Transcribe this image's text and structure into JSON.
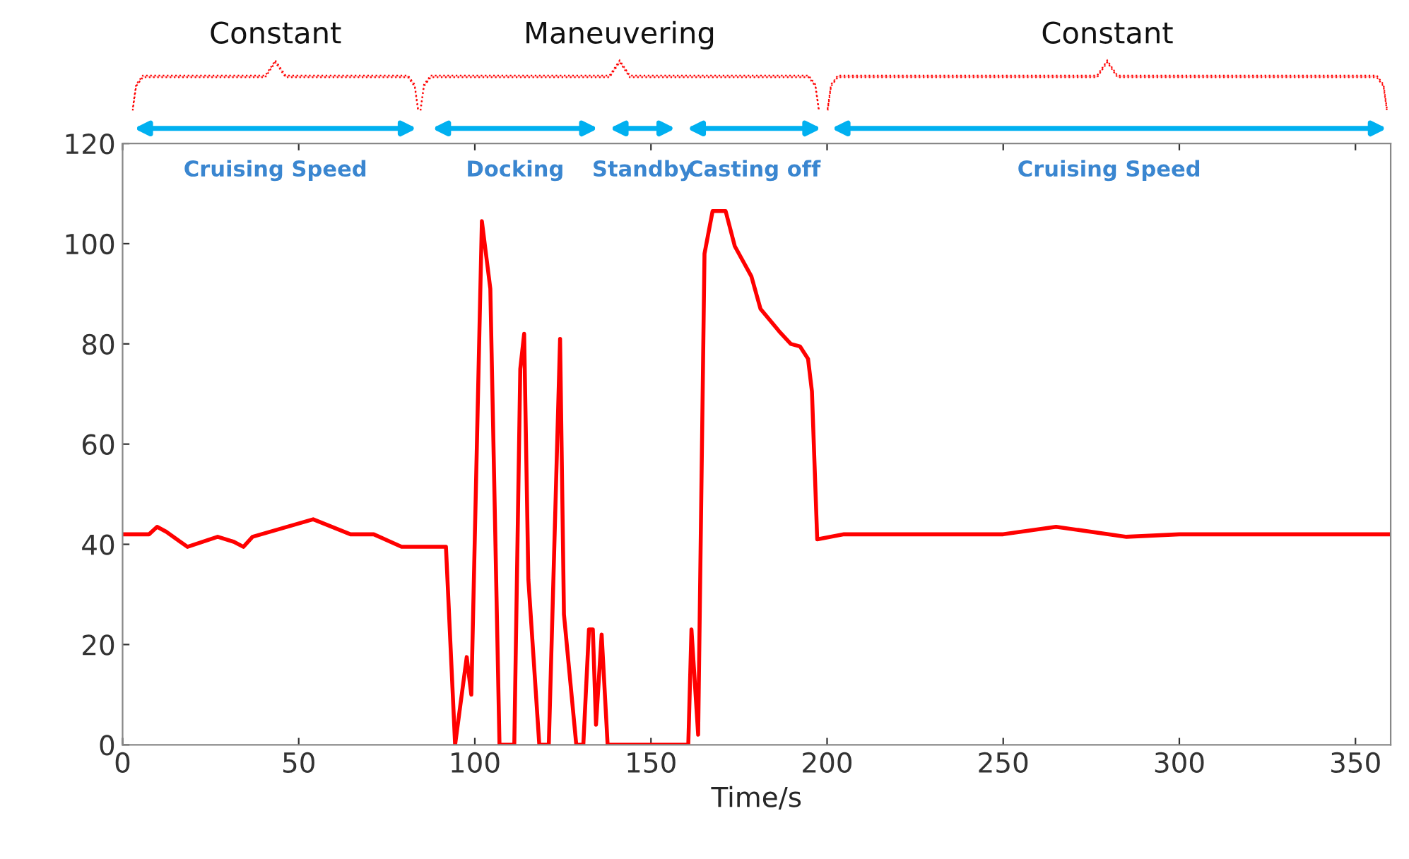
{
  "chart_data": {
    "type": "line",
    "xlabel": "Time/s",
    "xlim": [
      0,
      360
    ],
    "xticks": [
      0,
      50,
      100,
      150,
      200,
      250,
      300,
      350
    ],
    "ylim": [
      0,
      120
    ],
    "yticks": [
      0,
      20,
      40,
      60,
      80,
      100,
      120
    ],
    "grid": false,
    "legend": false,
    "series": [
      {
        "color": "#ff0000",
        "x": [
          0,
          7.5,
          9.8,
          12.4,
          18.4,
          27,
          31.6,
          34.3,
          36.9,
          54.1,
          64.7,
          71.3,
          79.2,
          91.8,
          94.4,
          97.7,
          99,
          102,
          104.4,
          107,
          111.2,
          112.9,
          114,
          115.2,
          118.3,
          121,
          124.2,
          125.3,
          128.8,
          130.8,
          132.4,
          133.5,
          134.4,
          136,
          137.7,
          160.6,
          161.5,
          163.4,
          165.2,
          167.5,
          171.2,
          173.8,
          178.5,
          181.1,
          186.4,
          189.7,
          192.3,
          194.6,
          195.7,
          197.2,
          204.8,
          250,
          265,
          285,
          300,
          360
        ],
        "values": [
          42,
          42,
          43.5,
          42.5,
          39.5,
          41.5,
          40.5,
          39.5,
          41.5,
          45,
          42,
          42,
          39.5,
          39.5,
          0,
          17.5,
          10,
          104.5,
          91,
          0,
          0,
          75,
          82,
          33,
          0,
          0,
          81,
          26,
          0,
          0,
          23,
          23,
          4,
          22,
          0,
          0,
          23,
          2,
          98,
          106.5,
          106.5,
          99.5,
          93.5,
          87,
          82.5,
          80,
          79.5,
          77,
          70.5,
          41,
          42,
          42,
          43.5,
          41.5,
          42,
          42
        ]
      }
    ],
    "annotations": [
      "Cruising Speed",
      "Docking",
      "Standby",
      "Casting off",
      "Cruising Speed",
      "Constant",
      "Maneuvering",
      "Constant"
    ]
  }
}
